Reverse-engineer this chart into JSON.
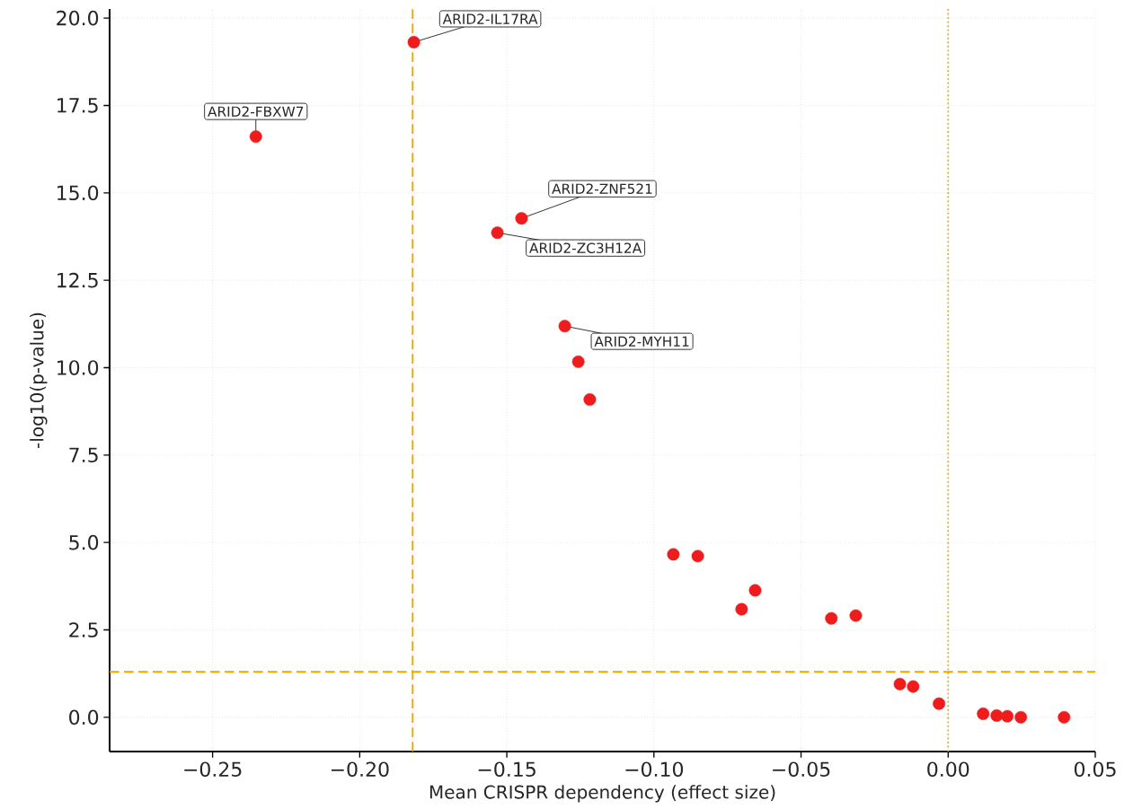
{
  "chart_data": {
    "type": "scatter",
    "xlabel": "Mean CRISPR dependency (effect size)",
    "ylabel": "-log10(p-value)",
    "xlim": [
      -0.285,
      0.05
    ],
    "ylim": [
      -0.98,
      20.26
    ],
    "xticks": [
      {
        "value": -0.25,
        "label": "−0.25"
      },
      {
        "value": -0.2,
        "label": "−0.20"
      },
      {
        "value": -0.15,
        "label": "−0.15"
      },
      {
        "value": -0.1,
        "label": "−0.10"
      },
      {
        "value": -0.05,
        "label": "−0.05"
      },
      {
        "value": 0,
        "label": "0.00"
      },
      {
        "value": 0.05,
        "label": "0.05"
      }
    ],
    "yticks": [
      {
        "value": 0,
        "label": "0.0"
      },
      {
        "value": 2.5,
        "label": "2.5"
      },
      {
        "value": 5,
        "label": "5.0"
      },
      {
        "value": 7.5,
        "label": "7.5"
      },
      {
        "value": 10,
        "label": "10.0"
      },
      {
        "value": 12.5,
        "label": "12.5"
      },
      {
        "value": 15,
        "label": "15.0"
      },
      {
        "value": 17.5,
        "label": "17.5"
      },
      {
        "value": 20,
        "label": "20.0"
      }
    ],
    "grid": true,
    "marker": "circle",
    "series": [
      {
        "color": "#ee1c1c",
        "x": [
          -0.1816,
          -0.2353,
          -0.145,
          -0.1532,
          -0.1303,
          -0.1257,
          -0.1218,
          -0.0934,
          -0.0851,
          -0.0656,
          -0.0702,
          -0.0397,
          -0.0314,
          -0.0164,
          -0.0119,
          -0.0031,
          0.0119,
          0.0165,
          0.0201,
          0.0247,
          0.0394
        ],
        "values": [
          19.31,
          16.61,
          14.27,
          13.86,
          11.19,
          10.17,
          9.09,
          4.66,
          4.61,
          3.63,
          3.09,
          2.83,
          2.91,
          0.95,
          0.88,
          0.39,
          0.1,
          0.05,
          0.03,
          0.0,
          0.0
        ]
      }
    ],
    "ref_lines": [
      {
        "axis": "y",
        "value": 1.3,
        "color": "#f0a500",
        "line_style": "dashed"
      },
      {
        "axis": "x",
        "value": -0.182,
        "color": "#f0a500",
        "line_style": "dashed"
      },
      {
        "axis": "x",
        "value": 0,
        "color": "#e0b030",
        "line_style": "dotted"
      }
    ],
    "annotations": [
      {
        "text": "ARID2-IL17RA",
        "x": -0.1816,
        "y": 19.31
      },
      {
        "text": "ARID2-FBXW7",
        "x": -0.2353,
        "y": 16.61
      },
      {
        "text": "ARID2-ZNF521",
        "x": -0.145,
        "y": 14.27
      },
      {
        "text": "ARID2-ZC3H12A",
        "x": -0.1532,
        "y": 13.86
      },
      {
        "text": "ARID2-MYH11",
        "x": -0.1303,
        "y": 11.19
      }
    ]
  }
}
